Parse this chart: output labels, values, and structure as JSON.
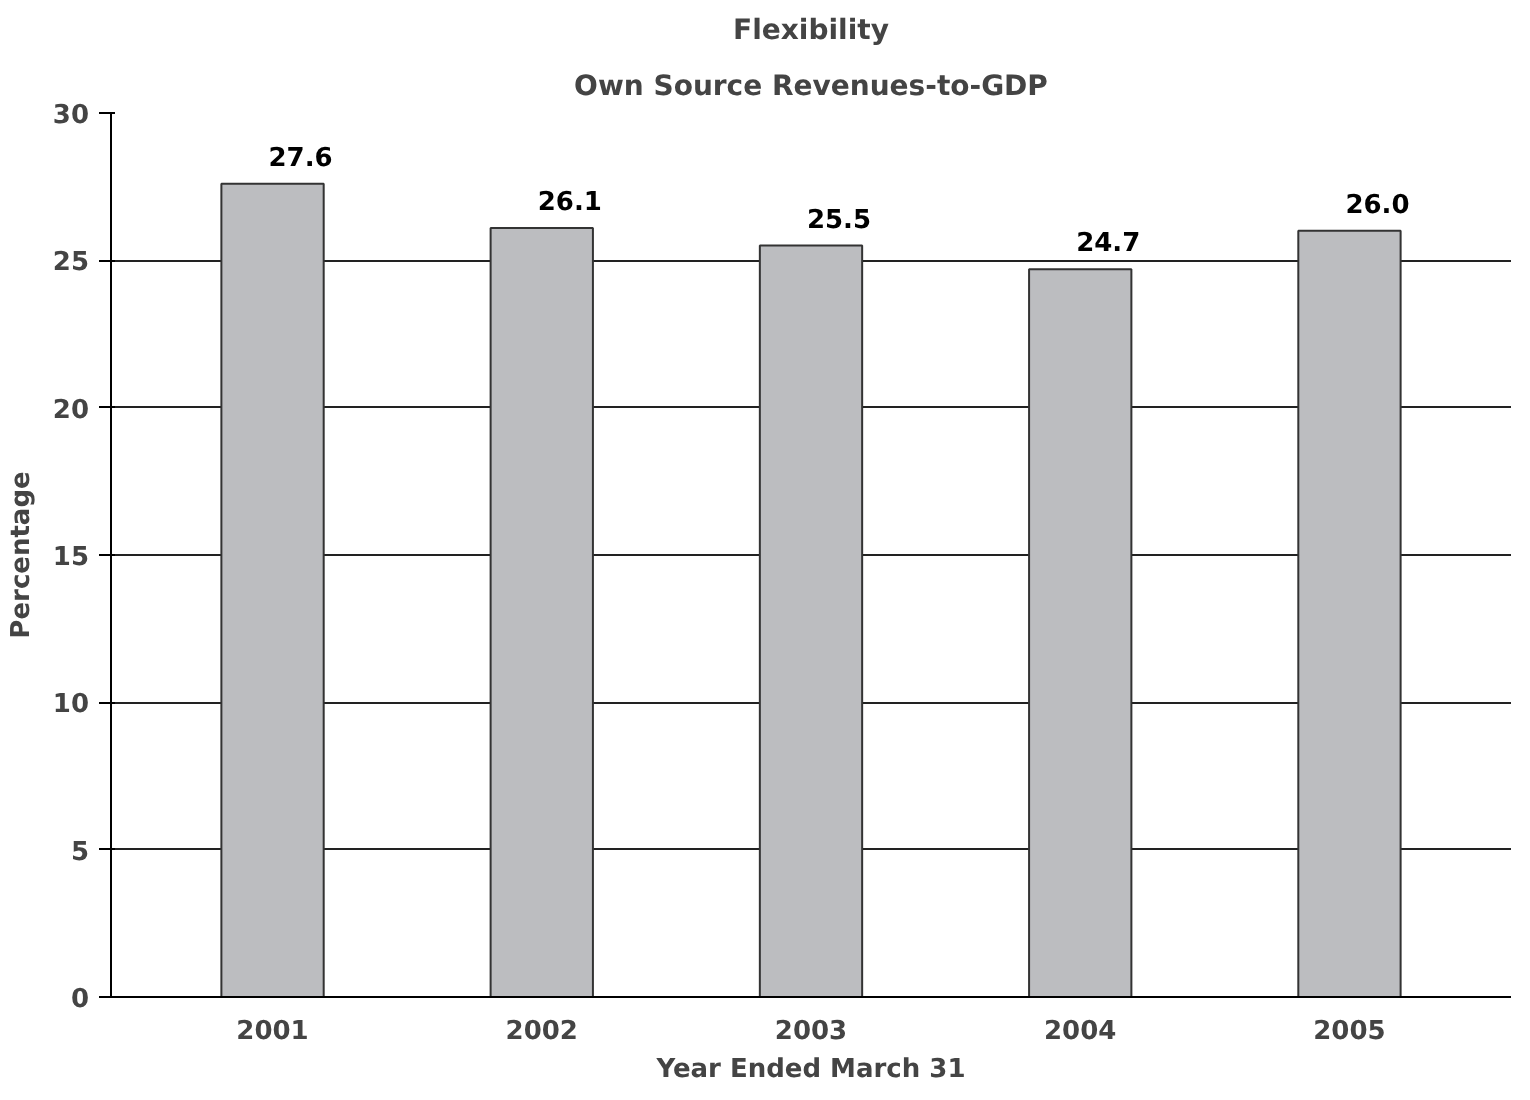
{
  "chart_data": {
    "type": "bar",
    "title": "Flexibility",
    "subtitle": "Own Source Revenues-to-GDP",
    "xlabel": "Year Ended March 31",
    "ylabel": "Percentage",
    "categories": [
      "2001",
      "2002",
      "2003",
      "2004",
      "2005"
    ],
    "values": [
      27.6,
      26.1,
      25.5,
      24.7,
      26.0
    ],
    "color": "#bcbdc0",
    "ylim": [
      0,
      30
    ],
    "yticks": [
      0,
      5,
      10,
      15,
      20,
      25,
      30
    ],
    "grid": "y",
    "value_labels": [
      "27.6",
      "26.1",
      "25.5",
      "24.7",
      "26.0"
    ]
  }
}
